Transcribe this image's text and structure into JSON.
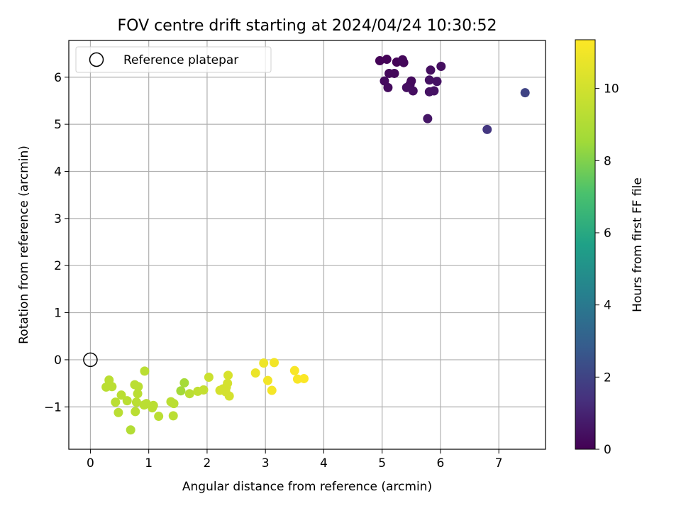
{
  "chart_data": {
    "type": "scatter",
    "title": "FOV centre drift starting at 2024/04/24 10:30:52",
    "xlabel": "Angular distance from reference (arcmin)",
    "ylabel": "Rotation from reference (arcmin)",
    "xlim": [
      -0.37,
      7.8
    ],
    "ylim": [
      -1.9,
      6.78
    ],
    "xticks": [
      0,
      1,
      2,
      3,
      4,
      5,
      6,
      7
    ],
    "yticks": [
      -1,
      0,
      1,
      2,
      3,
      4,
      5,
      6
    ],
    "grid": true,
    "legend": {
      "location": "top-left",
      "entries": [
        "Reference platepar"
      ]
    },
    "reference_point": {
      "x": 0,
      "y": 0
    },
    "colorbar": {
      "label": "Hours from first FF file",
      "range": [
        0,
        11.35
      ],
      "ticks": [
        0,
        2,
        4,
        6,
        8,
        10
      ],
      "colormap": "viridis"
    },
    "points": [
      {
        "x": 4.96,
        "y": 6.35,
        "h": 0.1
      },
      {
        "x": 5.08,
        "y": 6.38,
        "h": 0.1
      },
      {
        "x": 5.25,
        "y": 6.32,
        "h": 0.1
      },
      {
        "x": 5.35,
        "y": 6.37,
        "h": 0.2
      },
      {
        "x": 5.37,
        "y": 6.31,
        "h": 0.2
      },
      {
        "x": 5.12,
        "y": 6.08,
        "h": 0.2
      },
      {
        "x": 5.21,
        "y": 6.08,
        "h": 0.2
      },
      {
        "x": 5.04,
        "y": 5.92,
        "h": 0.3
      },
      {
        "x": 5.1,
        "y": 5.78,
        "h": 0.3
      },
      {
        "x": 5.5,
        "y": 5.92,
        "h": 0.3
      },
      {
        "x": 5.48,
        "y": 5.85,
        "h": 0.3
      },
      {
        "x": 5.42,
        "y": 5.78,
        "h": 0.4
      },
      {
        "x": 5.53,
        "y": 5.71,
        "h": 0.4
      },
      {
        "x": 5.83,
        "y": 6.15,
        "h": 0.4
      },
      {
        "x": 6.01,
        "y": 6.23,
        "h": 0.4
      },
      {
        "x": 5.81,
        "y": 5.94,
        "h": 0.5
      },
      {
        "x": 5.94,
        "y": 5.91,
        "h": 0.5
      },
      {
        "x": 5.81,
        "y": 5.69,
        "h": 0.5
      },
      {
        "x": 5.89,
        "y": 5.71,
        "h": 0.5
      },
      {
        "x": 5.78,
        "y": 5.12,
        "h": 0.6
      },
      {
        "x": 6.8,
        "y": 4.89,
        "h": 1.6
      },
      {
        "x": 7.45,
        "y": 5.67,
        "h": 2.0
      },
      {
        "x": 0.93,
        "y": -0.24,
        "h": 9.3
      },
      {
        "x": 0.32,
        "y": -0.43,
        "h": 9.3
      },
      {
        "x": 0.27,
        "y": -0.58,
        "h": 9.3
      },
      {
        "x": 0.37,
        "y": -0.57,
        "h": 9.3
      },
      {
        "x": 0.53,
        "y": -0.75,
        "h": 9.3
      },
      {
        "x": 0.63,
        "y": -0.87,
        "h": 9.3
      },
      {
        "x": 0.43,
        "y": -0.9,
        "h": 9.3
      },
      {
        "x": 0.48,
        "y": -1.12,
        "h": 9.3
      },
      {
        "x": 0.69,
        "y": -1.49,
        "h": 9.1
      },
      {
        "x": 0.76,
        "y": -0.53,
        "h": 9.3
      },
      {
        "x": 0.82,
        "y": -0.57,
        "h": 9.3
      },
      {
        "x": 0.81,
        "y": -0.72,
        "h": 9.3
      },
      {
        "x": 0.79,
        "y": -0.9,
        "h": 9.3
      },
      {
        "x": 0.92,
        "y": -0.96,
        "h": 9.3
      },
      {
        "x": 0.77,
        "y": -1.1,
        "h": 9.3
      },
      {
        "x": 0.96,
        "y": -0.93,
        "h": 9.3
      },
      {
        "x": 1.08,
        "y": -0.97,
        "h": 9.3
      },
      {
        "x": 1.06,
        "y": -1.02,
        "h": 9.3
      },
      {
        "x": 1.17,
        "y": -1.2,
        "h": 9.3
      },
      {
        "x": 1.38,
        "y": -0.89,
        "h": 9.3
      },
      {
        "x": 1.43,
        "y": -0.93,
        "h": 9.3
      },
      {
        "x": 1.42,
        "y": -1.19,
        "h": 9.3
      },
      {
        "x": 1.55,
        "y": -0.66,
        "h": 8.6
      },
      {
        "x": 1.61,
        "y": -0.49,
        "h": 8.7
      },
      {
        "x": 1.7,
        "y": -0.72,
        "h": 9.3
      },
      {
        "x": 1.84,
        "y": -0.67,
        "h": 9.5
      },
      {
        "x": 1.94,
        "y": -0.64,
        "h": 9.6
      },
      {
        "x": 2.03,
        "y": -0.37,
        "h": 9.8
      },
      {
        "x": 2.22,
        "y": -0.65,
        "h": 10.1
      },
      {
        "x": 2.27,
        "y": -0.62,
        "h": 10.1
      },
      {
        "x": 2.33,
        "y": -0.58,
        "h": 10.1
      },
      {
        "x": 2.35,
        "y": -0.5,
        "h": 10.1
      },
      {
        "x": 2.32,
        "y": -0.68,
        "h": 10.1
      },
      {
        "x": 2.38,
        "y": -0.77,
        "h": 10.1
      },
      {
        "x": 2.36,
        "y": -0.33,
        "h": 10.2
      },
      {
        "x": 2.83,
        "y": -0.28,
        "h": 10.8
      },
      {
        "x": 2.97,
        "y": -0.07,
        "h": 10.9
      },
      {
        "x": 3.15,
        "y": -0.06,
        "h": 11.0
      },
      {
        "x": 3.04,
        "y": -0.44,
        "h": 11.0
      },
      {
        "x": 3.11,
        "y": -0.65,
        "h": 11.1
      },
      {
        "x": 3.5,
        "y": -0.23,
        "h": 11.2
      },
      {
        "x": 3.55,
        "y": -0.41,
        "h": 11.2
      },
      {
        "x": 3.66,
        "y": -0.4,
        "h": 11.3
      }
    ]
  }
}
